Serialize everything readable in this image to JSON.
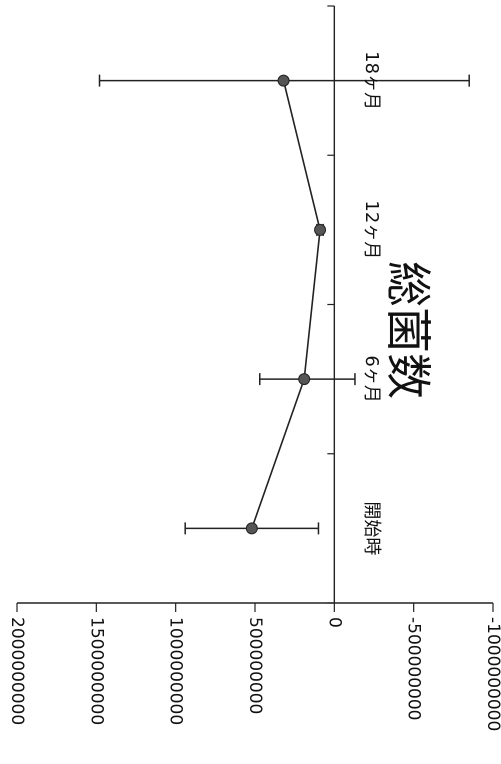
{
  "chart_data": {
    "type": "line",
    "title": "総菌数",
    "categories": [
      "開始時",
      "6ヶ月",
      "12ヶ月",
      "18ヶ月"
    ],
    "series": [
      {
        "values": [
          520000000,
          190000000,
          90000000,
          320000000
        ],
        "error_low": [
          100000000,
          -130000000,
          70000000,
          -850000000
        ],
        "error_high": [
          940000000,
          470000000,
          110000000,
          1480000000
        ]
      }
    ],
    "ylim": [
      -1000000000,
      2000000000
    ],
    "yticks": [
      2000000000,
      1500000000,
      1000000000,
      500000000,
      0,
      -500000000,
      -1000000000
    ],
    "ytick_labels": [
      "2000000000",
      "1500000000",
      "1000000000",
      "500000000",
      "0",
      "-500000000",
      "-1000000000"
    ],
    "grid": false,
    "orientation": "rotated-90-clockwise",
    "colors": {
      "line": "#222222",
      "marker": "#555555"
    }
  }
}
